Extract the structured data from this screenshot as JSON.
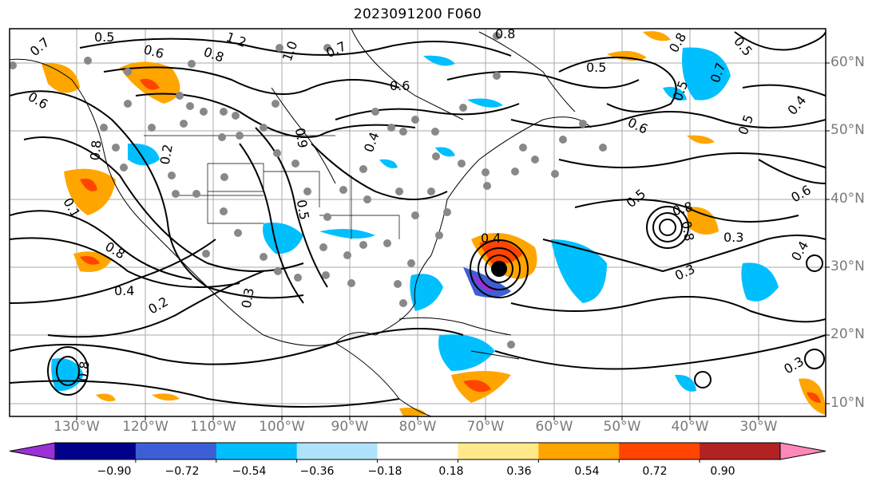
{
  "title": "2023091200 F060",
  "latitude_labels": [
    "60°N",
    "50°N",
    "40°N",
    "30°N",
    "20°N",
    "10°N"
  ],
  "longitude_labels": [
    "130°W",
    "120°W",
    "110°W",
    "100°W",
    "90°W",
    "80°W",
    "70°W",
    "60°W",
    "50°W",
    "40°W",
    "30°W"
  ],
  "contour_labels": [
    "0.5",
    "0.7",
    "1.2",
    "0.8",
    "0.6",
    "0.8",
    "0.7",
    "0.6",
    "0.8",
    "0.5",
    "0.5",
    "0.7",
    "0.5",
    "0.4",
    "0.6",
    "0.5",
    "0.6",
    "0.5",
    "0.8",
    "0.4",
    "0.3",
    "0.8",
    "0.4",
    "0.2",
    "0.3",
    "0.8",
    "0.3",
    "0.3",
    "0.4",
    "0.2",
    "0.8",
    "0.8",
    "0.6",
    "0.1",
    "1.0",
    "0.9",
    "0.4",
    "0.5"
  ],
  "colorbar": {
    "ticks": [
      "−0.90",
      "−0.72",
      "−0.54",
      "−0.36",
      "−0.18",
      "0.18",
      "0.36",
      "0.54",
      "0.72",
      "0.90"
    ],
    "colors": [
      "#9b30d9",
      "#00008b",
      "#3c5fd6",
      "#00bfff",
      "#aee3fb",
      "#ffffff",
      "#ffe98a",
      "#ffa500",
      "#ff4500",
      "#b22222",
      "#ff88bb"
    ]
  },
  "colors": {
    "frame": "#000000",
    "grid": "#aaaaaa",
    "axis_label": "#7a7a7a",
    "marker": "#888888"
  }
}
